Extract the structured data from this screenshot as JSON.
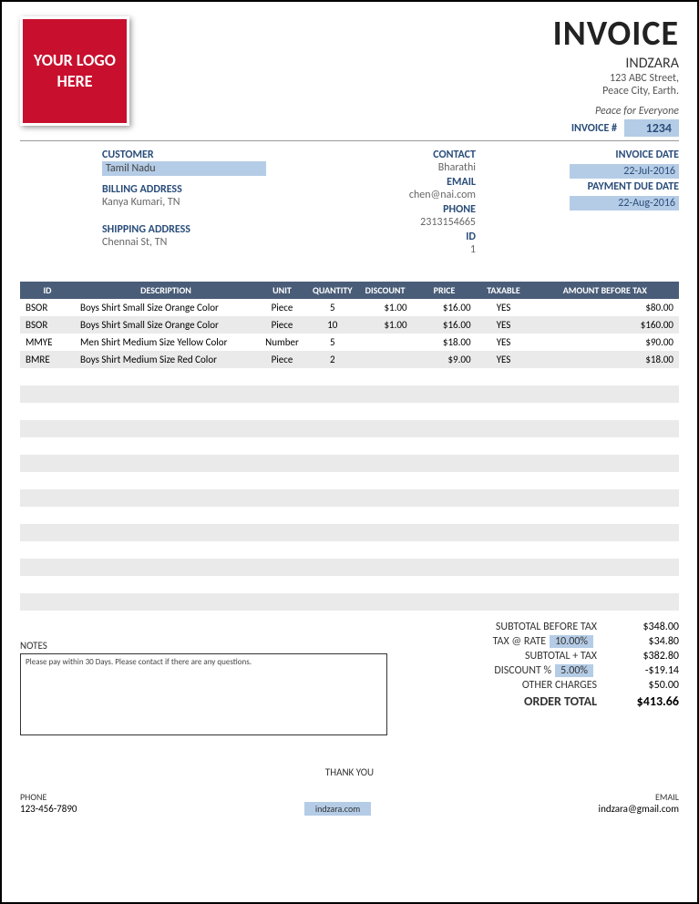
{
  "logo_text": "YOUR LOGO HERE",
  "header": {
    "title": "INVOICE",
    "company": "INDZARA",
    "street": "123 ABC Street,",
    "city": "Peace City, Earth.",
    "tagline": "Peace for Everyone",
    "invoice_num_label": "INVOICE #",
    "invoice_num": "1234"
  },
  "customer": {
    "customer_label": "CUSTOMER",
    "customer_value": "Tamil Nadu",
    "billing_label": "BILLING ADDRESS",
    "billing_value": "Kanya Kumari, TN",
    "shipping_label": "SHIPPING ADDRESS",
    "shipping_value": "Chennai St, TN"
  },
  "contact": {
    "contact_label": "CONTACT",
    "contact_value": "Bharathi",
    "email_label": "EMAIL",
    "email_value": "chen@nai.com",
    "phone_label": "PHONE",
    "phone_value": "2313154665",
    "id_label": "ID",
    "id_value": "1"
  },
  "dates": {
    "invoice_date_label": "INVOICE DATE",
    "invoice_date": "22-Jul-2016",
    "due_date_label": "PAYMENT DUE DATE",
    "due_date": "22-Aug-2016"
  },
  "table": {
    "headers": {
      "id": "ID",
      "desc": "DESCRIPTION",
      "unit": "UNIT",
      "qty": "QUANTITY",
      "disc": "DISCOUNT",
      "price": "PRICE",
      "tax": "TAXABLE",
      "amt": "AMOUNT BEFORE TAX"
    },
    "header_bg": "#4a5d78",
    "stripe_bg": "#eaeaea",
    "rows": [
      {
        "id": "BSOR",
        "desc": "Boys Shirt Small Size Orange Color",
        "unit": "Piece",
        "qty": "5",
        "disc": "$1.00",
        "price": "$16.00",
        "tax": "YES",
        "amt": "$80.00"
      },
      {
        "id": "BSOR",
        "desc": "Boys Shirt Small Size Orange Color",
        "unit": "Piece",
        "qty": "10",
        "disc": "$1.00",
        "price": "$16.00",
        "tax": "YES",
        "amt": "$160.00"
      },
      {
        "id": "MMYE",
        "desc": "Men Shirt Medium Size Yellow Color",
        "unit": "Number",
        "qty": "5",
        "disc": "",
        "price": "$18.00",
        "tax": "YES",
        "amt": "$90.00"
      },
      {
        "id": "BMRE",
        "desc": "Boys Shirt Medium Size Red Color",
        "unit": "Piece",
        "qty": "2",
        "disc": "",
        "price": "$9.00",
        "tax": "YES",
        "amt": "$18.00"
      }
    ],
    "empty_rows": 14
  },
  "notes": {
    "label": "NOTES",
    "text": "Please pay within 30 Days. Please contact if there are any questions."
  },
  "totals": {
    "subtotal_label": "SUBTOTAL BEFORE TAX",
    "subtotal": "$348.00",
    "tax_label": "TAX @ RATE",
    "tax_rate": "10.00%",
    "tax_amount": "$34.80",
    "subtax_label": "SUBTOTAL + TAX",
    "subtax": "$382.80",
    "discount_label": "DISCOUNT %",
    "discount_rate": "5.00%",
    "discount_amount": "-$19.14",
    "other_label": "OTHER CHARGES",
    "other": "$50.00",
    "total_label": "ORDER TOTAL",
    "total": "$413.66"
  },
  "thank_you": "THANK YOU",
  "footer": {
    "phone_label": "PHONE",
    "phone": "123-456-7890",
    "site": "indzara.com",
    "email_label": "EMAIL",
    "email": "indzara@gmail.com"
  },
  "colors": {
    "highlight": "#b5cce6",
    "label": "#2a4d7a",
    "logo_bg": "#c8102e"
  }
}
